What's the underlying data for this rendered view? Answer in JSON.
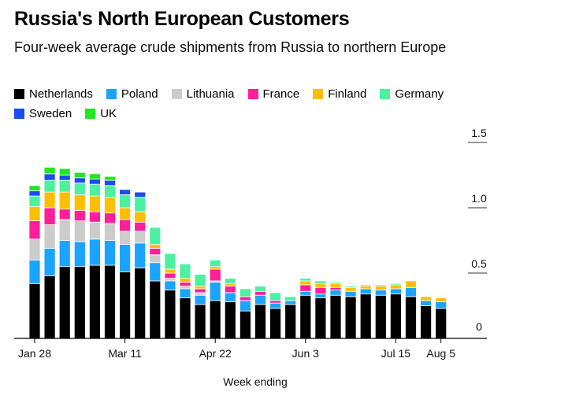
{
  "chart_data": {
    "type": "bar",
    "stacked": true,
    "title": "Russia's North European Customers",
    "subtitle": "Four-week average crude shipments from Russia to northern Europe",
    "xlabel": "Week ending",
    "ylabel": "",
    "ylim": [
      0,
      1.5
    ],
    "yticks": [
      "0",
      "0.5",
      "1.0",
      "1.5"
    ],
    "ytick_values": [
      0,
      0.5,
      1.0,
      1.5
    ],
    "xtick_labels": [
      "Jan 28",
      "Mar 11",
      "Apr 22",
      "Jun 3",
      "Jul 15",
      "Aug 5"
    ],
    "xtick_indices": [
      0,
      6,
      12,
      18,
      24,
      27
    ],
    "categories": [
      "Jan 28",
      "Feb 4",
      "Feb 11",
      "Feb 18",
      "Feb 25",
      "Mar 4",
      "Mar 11",
      "Mar 18",
      "Mar 25",
      "Apr 1",
      "Apr 8",
      "Apr 15",
      "Apr 22",
      "Apr 29",
      "May 6",
      "May 13",
      "May 20",
      "May 27",
      "Jun 3",
      "Jun 10",
      "Jun 17",
      "Jun 24",
      "Jul 1",
      "Jul 8",
      "Jul 15",
      "Jul 22",
      "Jul 29",
      "Aug 5"
    ],
    "series": [
      {
        "name": "Netherlands",
        "color": "#000000",
        "values": [
          0.42,
          0.48,
          0.55,
          0.55,
          0.56,
          0.56,
          0.51,
          0.54,
          0.44,
          0.37,
          0.31,
          0.26,
          0.29,
          0.28,
          0.21,
          0.26,
          0.23,
          0.26,
          0.33,
          0.31,
          0.33,
          0.32,
          0.34,
          0.33,
          0.34,
          0.32,
          0.25,
          0.23
        ]
      },
      {
        "name": "Poland",
        "color": "#1aa3ff",
        "values": [
          0.18,
          0.21,
          0.2,
          0.19,
          0.2,
          0.19,
          0.21,
          0.19,
          0.14,
          0.07,
          0.07,
          0.07,
          0.14,
          0.07,
          0.08,
          0.07,
          0.04,
          0.03,
          0.03,
          0.03,
          0.04,
          0.04,
          0.04,
          0.04,
          0.04,
          0.07,
          0.04,
          0.05
        ]
      },
      {
        "name": "Lithuania",
        "color": "#cccccc",
        "values": [
          0.16,
          0.18,
          0.16,
          0.16,
          0.13,
          0.13,
          0.1,
          0.09,
          0.06,
          0.02,
          0.02,
          0.02,
          0.01,
          0.0,
          0.0,
          0.0,
          0.0,
          0.0,
          0.0,
          0.0,
          0.0,
          0.0,
          0.0,
          0.0,
          0.0,
          0.0,
          0.0,
          0.0
        ]
      },
      {
        "name": "France",
        "color": "#ff1f9a",
        "values": [
          0.14,
          0.13,
          0.08,
          0.08,
          0.08,
          0.08,
          0.09,
          0.07,
          0.05,
          0.04,
          0.03,
          0.03,
          0.09,
          0.05,
          0.03,
          0.03,
          0.02,
          0.0,
          0.05,
          0.05,
          0.02,
          0.0,
          0.0,
          0.0,
          0.0,
          0.0,
          0.0,
          0.0
        ]
      },
      {
        "name": "Finland",
        "color": "#ffbf00",
        "values": [
          0.11,
          0.12,
          0.13,
          0.12,
          0.12,
          0.12,
          0.09,
          0.08,
          0.03,
          0.03,
          0.03,
          0.02,
          0.02,
          0.02,
          0.0,
          0.0,
          0.0,
          0.0,
          0.03,
          0.03,
          0.03,
          0.03,
          0.02,
          0.03,
          0.03,
          0.05,
          0.03,
          0.03
        ]
      },
      {
        "name": "Germany",
        "color": "#4cf0a0",
        "values": [
          0.08,
          0.09,
          0.09,
          0.09,
          0.09,
          0.09,
          0.1,
          0.11,
          0.13,
          0.12,
          0.11,
          0.09,
          0.05,
          0.04,
          0.06,
          0.04,
          0.06,
          0.03,
          0.02,
          0.02,
          0.01,
          0.01,
          0.01,
          0.01,
          0.01,
          0.0,
          0.0,
          0.0
        ]
      },
      {
        "name": "Sweden",
        "color": "#1a4cf0",
        "values": [
          0.04,
          0.05,
          0.04,
          0.04,
          0.04,
          0.04,
          0.04,
          0.04,
          0.0,
          0.0,
          0.0,
          0.0,
          0.0,
          0.0,
          0.0,
          0.0,
          0.0,
          0.0,
          0.0,
          0.0,
          0.0,
          0.0,
          0.0,
          0.0,
          0.0,
          0.0,
          0.0,
          0.0
        ]
      },
      {
        "name": "UK",
        "color": "#22e622",
        "values": [
          0.04,
          0.05,
          0.05,
          0.04,
          0.04,
          0.03,
          0.0,
          0.0,
          0.0,
          0.0,
          0.0,
          0.0,
          0.0,
          0.0,
          0.0,
          0.0,
          0.0,
          0.0,
          0.0,
          0.0,
          0.0,
          0.0,
          0.0,
          0.0,
          0.0,
          0.0,
          0.0,
          0.0
        ]
      }
    ]
  }
}
